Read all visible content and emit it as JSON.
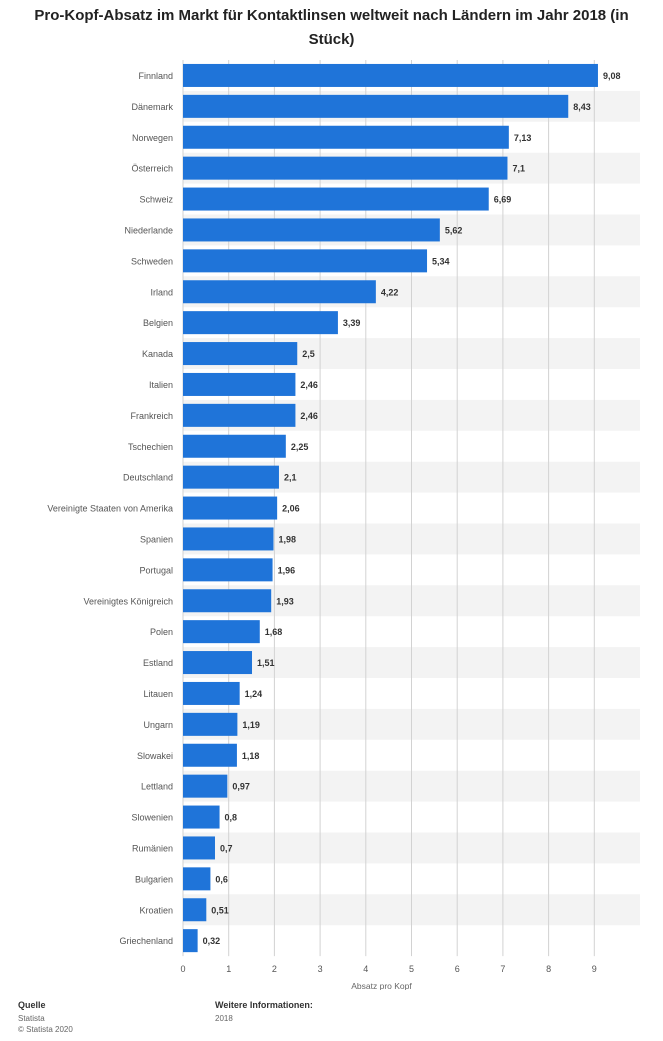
{
  "title": "Pro-Kopf-Absatz im Markt für Kontaktlinsen weltweit nach Ländern im Jahr 2018 (in Stück)",
  "footer": {
    "source_label": "Quelle",
    "source_name": "Statista",
    "copyright": "© Statista 2020",
    "info_label": "Weitere Informationen:",
    "info_value": "2018"
  },
  "colors": {
    "bar": "#1F74D9",
    "band": "#F3F3F3",
    "grid": "#D2D2D2"
  },
  "chart_data": {
    "type": "bar",
    "orientation": "horizontal",
    "title": "Pro-Kopf-Absatz im Markt für Kontaktlinsen weltweit nach Ländern im Jahr 2018 (in Stück)",
    "xlabel": "Absatz pro Kopf",
    "ylabel": "",
    "xlim": [
      0,
      10
    ],
    "xticks": [
      "0",
      "1",
      "2",
      "3",
      "4",
      "5",
      "6",
      "7",
      "8",
      "9"
    ],
    "grid": true,
    "categories": [
      "Finnland",
      "Dänemark",
      "Norwegen",
      "Österreich",
      "Schweiz",
      "Niederlande",
      "Schweden",
      "Irland",
      "Belgien",
      "Kanada",
      "Italien",
      "Frankreich",
      "Tschechien",
      "Deutschland",
      "Vereinigte Staaten von Amerika",
      "Spanien",
      "Portugal",
      "Vereinigtes Königreich",
      "Polen",
      "Estland",
      "Litauen",
      "Ungarn",
      "Slowakei",
      "Lettland",
      "Slowenien",
      "Rumänien",
      "Bulgarien",
      "Kroatien",
      "Griechenland"
    ],
    "values": [
      9.08,
      8.43,
      7.13,
      7.1,
      6.69,
      5.62,
      5.34,
      4.22,
      3.39,
      2.5,
      2.46,
      2.46,
      2.25,
      2.1,
      2.06,
      1.98,
      1.96,
      1.93,
      1.68,
      1.51,
      1.24,
      1.19,
      1.18,
      0.97,
      0.8,
      0.7,
      0.6,
      0.51,
      0.32
    ],
    "value_labels": [
      "9,08",
      "8,43",
      "7,13",
      "7,1",
      "6,69",
      "5,62",
      "5,34",
      "4,22",
      "3,39",
      "2,5",
      "2,46",
      "2,46",
      "2,25",
      "2,1",
      "2,06",
      "1,98",
      "1,96",
      "1,93",
      "1,68",
      "1,51",
      "1,24",
      "1,19",
      "1,18",
      "0,97",
      "0,8",
      "0,7",
      "0,6",
      "0,51",
      "0,32"
    ]
  }
}
